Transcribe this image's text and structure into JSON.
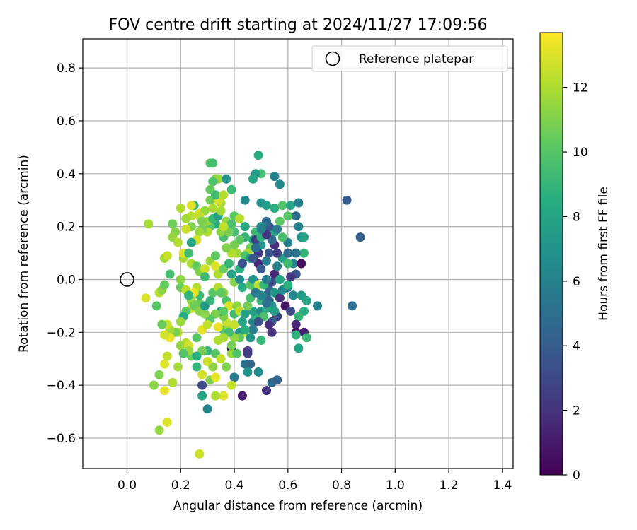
{
  "chart_data": {
    "type": "scatter",
    "title": "FOV centre drift starting at 2024/11/27 17:09:56",
    "xlabel": "Angular distance from reference (arcmin)",
    "ylabel": "Rotation from reference (arcmin)",
    "xlim": [
      -0.165,
      1.44
    ],
    "ylim": [
      -0.715,
      0.91
    ],
    "grid": true,
    "xticks": [
      0.0,
      0.2,
      0.4,
      0.6,
      0.8,
      1.0,
      1.2,
      1.4
    ],
    "xtick_labels": [
      "0.0",
      "0.2",
      "0.4",
      "0.6",
      "0.8",
      "1.0",
      "1.2",
      "1.4"
    ],
    "yticks": [
      0.8,
      0.6,
      0.4,
      0.2,
      0.0,
      -0.2,
      -0.4,
      -0.6
    ],
    "ytick_labels": [
      "0.8",
      "0.6",
      "0.4",
      "0.2",
      "0.0",
      "−0.2",
      "−0.4",
      "−0.6"
    ],
    "legend": {
      "location": "upper right",
      "entries": [
        "Reference platepar"
      ]
    },
    "reference_point": {
      "x": 0.0,
      "y": 0.0,
      "label": "Reference platepar"
    },
    "colorbar": {
      "label": "Hours from first FF file",
      "range": [
        0,
        13.7
      ],
      "ticks": [
        0,
        2,
        4,
        6,
        8,
        10,
        12
      ],
      "tick_labels": [
        "0",
        "2",
        "4",
        "6",
        "8",
        "10",
        "12"
      ],
      "colormap": "viridis"
    },
    "points": [
      [
        0.49,
        0.47,
        8.5
      ],
      [
        0.31,
        0.44,
        10
      ],
      [
        0.32,
        0.44,
        9.5
      ],
      [
        0.5,
        0.4,
        9.5
      ],
      [
        0.48,
        0.4,
        7.5
      ],
      [
        0.47,
        0.38,
        8
      ],
      [
        0.55,
        0.39,
        6
      ],
      [
        0.57,
        0.36,
        6.3
      ],
      [
        0.33,
        0.38,
        11
      ],
      [
        0.34,
        0.38,
        11.5
      ],
      [
        0.32,
        0.37,
        9.8
      ],
      [
        0.37,
        0.38,
        7
      ],
      [
        0.39,
        0.34,
        9.2
      ],
      [
        0.82,
        0.3,
        4
      ],
      [
        0.87,
        0.16,
        4.2
      ],
      [
        0.84,
        -0.1,
        5
      ],
      [
        0.71,
        -0.1,
        6
      ],
      [
        0.44,
        0.3,
        6.5
      ],
      [
        0.5,
        0.29,
        7
      ],
      [
        0.52,
        0.28,
        7.6
      ],
      [
        0.55,
        0.27,
        8.5
      ],
      [
        0.58,
        0.28,
        9.8
      ],
      [
        0.61,
        0.28,
        8
      ],
      [
        0.64,
        0.29,
        5.8
      ],
      [
        0.63,
        0.24,
        5
      ],
      [
        0.6,
        0.24,
        10
      ],
      [
        0.64,
        0.2,
        6
      ],
      [
        0.65,
        0.16,
        7
      ],
      [
        0.66,
        0.16,
        8
      ],
      [
        0.66,
        0.1,
        9
      ],
      [
        0.63,
        0.1,
        5.2
      ],
      [
        0.62,
        0.06,
        6
      ],
      [
        0.65,
        0.06,
        0.5
      ],
      [
        0.63,
        0.02,
        3.5
      ],
      [
        0.61,
        0.01,
        2.2
      ],
      [
        0.6,
        -0.03,
        5.5
      ],
      [
        0.62,
        -0.06,
        6.4
      ],
      [
        0.65,
        -0.06,
        7.5
      ],
      [
        0.67,
        -0.08,
        8
      ],
      [
        0.66,
        -0.12,
        8.5
      ],
      [
        0.64,
        -0.14,
        9
      ],
      [
        0.63,
        -0.17,
        1.5
      ],
      [
        0.63,
        -0.2,
        0.7
      ],
      [
        0.66,
        -0.2,
        1.2
      ],
      [
        0.67,
        -0.22,
        9.2
      ],
      [
        0.64,
        -0.26,
        8.1
      ],
      [
        0.63,
        -0.21,
        8.8
      ],
      [
        0.59,
        -0.1,
        0.8
      ],
      [
        0.61,
        -0.12,
        3
      ],
      [
        0.56,
        -0.14,
        2.8
      ],
      [
        0.54,
        -0.16,
        4
      ],
      [
        0.54,
        -0.2,
        2
      ],
      [
        0.53,
        -0.17,
        1.8
      ],
      [
        0.5,
        -0.23,
        9
      ],
      [
        0.45,
        -0.27,
        2.2
      ],
      [
        0.45,
        -0.28,
        2.6
      ],
      [
        0.44,
        -0.32,
        5
      ],
      [
        0.46,
        -0.32,
        4.5
      ],
      [
        0.45,
        -0.35,
        7
      ],
      [
        0.49,
        -0.35,
        6.6
      ],
      [
        0.52,
        -0.42,
        2
      ],
      [
        0.54,
        -0.39,
        4.6
      ],
      [
        0.56,
        -0.38,
        4.2
      ],
      [
        0.43,
        -0.44,
        1
      ],
      [
        0.4,
        -0.37,
        5.5
      ],
      [
        0.39,
        -0.4,
        12.5
      ],
      [
        0.36,
        -0.44,
        13
      ],
      [
        0.33,
        -0.44,
        12
      ],
      [
        0.31,
        -0.38,
        11
      ],
      [
        0.33,
        -0.37,
        13.2
      ],
      [
        0.28,
        -0.36,
        12.8
      ],
      [
        0.28,
        -0.4,
        3
      ],
      [
        0.28,
        -0.44,
        8
      ],
      [
        0.3,
        -0.49,
        6.2
      ],
      [
        0.27,
        -0.66,
        12.6
      ],
      [
        0.12,
        -0.57,
        11.5
      ],
      [
        0.15,
        -0.54,
        13
      ],
      [
        0.14,
        -0.42,
        13.3
      ],
      [
        0.17,
        -0.39,
        12
      ],
      [
        0.12,
        -0.36,
        11
      ],
      [
        0.1,
        -0.4,
        11.2
      ],
      [
        0.14,
        -0.32,
        13
      ],
      [
        0.15,
        -0.29,
        12.5
      ],
      [
        0.19,
        -0.33,
        11.8
      ],
      [
        0.24,
        -0.29,
        10.5
      ],
      [
        0.22,
        -0.24,
        12.2
      ],
      [
        0.2,
        -0.25,
        11.5
      ],
      [
        0.23,
        -0.25,
        12.8
      ],
      [
        0.26,
        -0.33,
        9
      ],
      [
        0.26,
        -0.22,
        10
      ],
      [
        0.28,
        -0.19,
        13.2
      ],
      [
        0.3,
        -0.27,
        9
      ],
      [
        0.33,
        -0.28,
        10
      ],
      [
        0.35,
        -0.3,
        12.5
      ],
      [
        0.37,
        -0.33,
        11
      ],
      [
        0.34,
        -0.23,
        12
      ],
      [
        0.39,
        -0.26,
        0.8
      ],
      [
        0.39,
        -0.28,
        11.5
      ],
      [
        0.36,
        -0.19,
        10
      ],
      [
        0.38,
        -0.18,
        11.8
      ],
      [
        0.4,
        -0.17,
        12.5
      ],
      [
        0.43,
        -0.16,
        8
      ],
      [
        0.44,
        -0.2,
        12.6
      ],
      [
        0.42,
        -0.2,
        7
      ],
      [
        0.47,
        -0.16,
        6
      ],
      [
        0.48,
        -0.14,
        8.8
      ],
      [
        0.47,
        -0.12,
        7.7
      ],
      [
        0.5,
        -0.12,
        6.5
      ],
      [
        0.5,
        -0.08,
        9
      ],
      [
        0.52,
        -0.06,
        5.5
      ],
      [
        0.53,
        -0.04,
        4.5
      ],
      [
        0.54,
        -0.01,
        3.2
      ],
      [
        0.55,
        0.02,
        1.5
      ],
      [
        0.56,
        0.05,
        6
      ],
      [
        0.58,
        0.08,
        7.8
      ],
      [
        0.6,
        0.1,
        4.8
      ],
      [
        0.6,
        0.14,
        5.8
      ],
      [
        0.58,
        0.16,
        9.6
      ],
      [
        0.55,
        0.18,
        8.2
      ],
      [
        0.53,
        0.2,
        3.8
      ],
      [
        0.52,
        0.22,
        5
      ],
      [
        0.5,
        0.2,
        6.7
      ],
      [
        0.48,
        0.18,
        9.2
      ],
      [
        0.47,
        0.15,
        8
      ],
      [
        0.46,
        0.12,
        10.6
      ],
      [
        0.45,
        0.1,
        12
      ],
      [
        0.44,
        0.09,
        9.9
      ],
      [
        0.46,
        0.08,
        7.3
      ],
      [
        0.49,
        0.06,
        1.5
      ],
      [
        0.5,
        0.04,
        3.8
      ],
      [
        0.52,
        0.07,
        5.8
      ],
      [
        0.53,
        0.1,
        3.6
      ],
      [
        0.5,
        0.13,
        7
      ],
      [
        0.48,
        0.15,
        2.7
      ],
      [
        0.44,
        0.16,
        9
      ],
      [
        0.42,
        0.15,
        10.2
      ],
      [
        0.4,
        0.13,
        10.8
      ],
      [
        0.41,
        0.1,
        11.6
      ],
      [
        0.39,
        0.1,
        12
      ],
      [
        0.37,
        0.12,
        11
      ],
      [
        0.36,
        0.16,
        9.6
      ],
      [
        0.35,
        0.18,
        11.2
      ],
      [
        0.33,
        0.21,
        8.5
      ],
      [
        0.31,
        0.2,
        10.1
      ],
      [
        0.3,
        0.18,
        12
      ],
      [
        0.28,
        0.19,
        10.8
      ],
      [
        0.27,
        0.18,
        11.6
      ],
      [
        0.26,
        0.15,
        12.8
      ],
      [
        0.24,
        0.14,
        8
      ],
      [
        0.24,
        0.2,
        11
      ],
      [
        0.24,
        0.24,
        12.3
      ],
      [
        0.25,
        0.28,
        9
      ],
      [
        0.24,
        0.28,
        13.1
      ],
      [
        0.27,
        0.25,
        12.9
      ],
      [
        0.3,
        0.22,
        11.4
      ],
      [
        0.32,
        0.23,
        9.2
      ],
      [
        0.34,
        0.24,
        7.6
      ],
      [
        0.35,
        0.26,
        11.8
      ],
      [
        0.35,
        0.29,
        12
      ],
      [
        0.37,
        0.22,
        11.2
      ],
      [
        0.39,
        0.21,
        9.7
      ],
      [
        0.4,
        0.24,
        10.1
      ],
      [
        0.42,
        0.23,
        12.2
      ],
      [
        0.44,
        0.2,
        8.3
      ],
      [
        0.4,
        0.18,
        9.5
      ],
      [
        0.38,
        0.18,
        10.8
      ],
      [
        0.36,
        0.2,
        12.4
      ],
      [
        0.17,
        0.21,
        10.6
      ],
      [
        0.18,
        0.18,
        11.1
      ],
      [
        0.17,
        0.16,
        11.5
      ],
      [
        0.19,
        0.14,
        12.2
      ],
      [
        0.21,
        0.08,
        11.8
      ],
      [
        0.21,
        0.1,
        13
      ],
      [
        0.23,
        0.1,
        9.4
      ],
      [
        0.24,
        0.06,
        12
      ],
      [
        0.26,
        0.05,
        10.3
      ],
      [
        0.27,
        0.03,
        11
      ],
      [
        0.29,
        0.04,
        12.7
      ],
      [
        0.29,
        0.01,
        9.3
      ],
      [
        0.31,
        0.07,
        11.5
      ],
      [
        0.33,
        0.09,
        10.2
      ],
      [
        0.33,
        0.05,
        13
      ],
      [
        0.34,
        0.02,
        12
      ],
      [
        0.36,
        0.04,
        10.6
      ],
      [
        0.38,
        0.06,
        9.1
      ],
      [
        0.39,
        0.02,
        7.8
      ],
      [
        0.4,
        -0.01,
        11.1
      ],
      [
        0.42,
        0.04,
        8.7
      ],
      [
        0.43,
        0.06,
        3.5
      ],
      [
        0.42,
        0.0,
        6.5
      ],
      [
        0.43,
        -0.03,
        8.4
      ],
      [
        0.46,
        -0.02,
        10
      ],
      [
        0.47,
        0.0,
        7
      ],
      [
        0.48,
        -0.04,
        9.8
      ],
      [
        0.49,
        -0.02,
        12.3
      ],
      [
        0.51,
        -0.02,
        9
      ],
      [
        0.52,
        0.0,
        5.7
      ],
      [
        0.53,
        -0.08,
        4.4
      ],
      [
        0.54,
        -0.1,
        6.8
      ],
      [
        0.55,
        -0.12,
        7.5
      ],
      [
        0.52,
        -0.11,
        8.2
      ],
      [
        0.51,
        -0.14,
        9.7
      ],
      [
        0.49,
        -0.16,
        3.4
      ],
      [
        0.47,
        -0.19,
        5.8
      ],
      [
        0.46,
        -0.22,
        7.1
      ],
      [
        0.44,
        -0.19,
        8.6
      ],
      [
        0.42,
        -0.22,
        10.3
      ],
      [
        0.4,
        -0.22,
        11.4
      ],
      [
        0.38,
        -0.2,
        9.5
      ],
      [
        0.37,
        -0.16,
        12.6
      ],
      [
        0.36,
        -0.14,
        10.9
      ],
      [
        0.35,
        -0.12,
        8.1
      ],
      [
        0.33,
        -0.13,
        11
      ],
      [
        0.31,
        -0.15,
        9.9
      ],
      [
        0.3,
        -0.17,
        12.4
      ],
      [
        0.29,
        -0.13,
        11.3
      ],
      [
        0.27,
        -0.09,
        10.4
      ],
      [
        0.27,
        -0.06,
        9.2
      ],
      [
        0.26,
        -0.03,
        12.1
      ],
      [
        0.25,
        -0.05,
        13.2
      ],
      [
        0.24,
        -0.08,
        11.4
      ],
      [
        0.24,
        -0.11,
        12.7
      ],
      [
        0.22,
        -0.12,
        10.2
      ],
      [
        0.21,
        -0.14,
        8.4
      ],
      [
        0.2,
        -0.16,
        11.6
      ],
      [
        0.19,
        -0.2,
        12.2
      ],
      [
        0.18,
        -0.2,
        10.8
      ],
      [
        0.16,
        -0.19,
        11.7
      ],
      [
        0.15,
        -0.17,
        12.6
      ],
      [
        0.16,
        -0.22,
        13.3
      ],
      [
        0.13,
        -0.17,
        10.5
      ],
      [
        0.14,
        -0.21,
        12.8
      ],
      [
        0.11,
        -0.1,
        10.1
      ],
      [
        0.12,
        -0.05,
        12.2
      ],
      [
        0.13,
        -0.04,
        11.3
      ],
      [
        0.14,
        -0.02,
        10.4
      ],
      [
        0.16,
        0.02,
        9.5
      ],
      [
        0.14,
        0.08,
        11.8
      ],
      [
        0.15,
        0.09,
        12.5
      ],
      [
        0.08,
        0.21,
        11.8
      ],
      [
        0.07,
        -0.07,
        12.9
      ],
      [
        0.2,
        0.0,
        11.3
      ],
      [
        0.2,
        -0.03,
        10.5
      ],
      [
        0.22,
        -0.04,
        12.4
      ],
      [
        0.23,
        -0.06,
        8.8
      ],
      [
        0.25,
        -0.1,
        10.6
      ],
      [
        0.27,
        -0.12,
        11.1
      ],
      [
        0.29,
        -0.1,
        7.4
      ],
      [
        0.31,
        -0.08,
        8.9
      ],
      [
        0.32,
        -0.05,
        10.1
      ],
      [
        0.34,
        -0.03,
        12.2
      ],
      [
        0.36,
        -0.05,
        11.4
      ],
      [
        0.37,
        -0.08,
        9.7
      ],
      [
        0.38,
        -0.1,
        12.9
      ],
      [
        0.36,
        -0.12,
        10.3
      ],
      [
        0.4,
        -0.13,
        9.4
      ],
      [
        0.41,
        -0.1,
        11.3
      ],
      [
        0.42,
        -0.12,
        12.4
      ],
      [
        0.44,
        -0.13,
        7.7
      ],
      [
        0.45,
        -0.1,
        10.7
      ],
      [
        0.46,
        -0.07,
        9.6
      ],
      [
        0.48,
        -0.05,
        5.3
      ],
      [
        0.5,
        -0.06,
        6.1
      ],
      [
        0.52,
        -0.09,
        5.1
      ],
      [
        0.55,
        -0.05,
        7.2
      ],
      [
        0.57,
        -0.07,
        1.9
      ],
      [
        0.58,
        -0.04,
        6.3
      ],
      [
        0.57,
        0.0,
        7.9
      ],
      [
        0.6,
        -0.02,
        8.7
      ],
      [
        0.6,
        0.06,
        9.3
      ],
      [
        0.56,
        0.1,
        2.5
      ],
      [
        0.55,
        0.13,
        1.8
      ],
      [
        0.54,
        0.15,
        4.6
      ],
      [
        0.56,
        0.19,
        5.6
      ],
      [
        0.57,
        0.22,
        10.2
      ],
      [
        0.49,
        0.1,
        2.4
      ],
      [
        0.47,
        0.08,
        3.7
      ],
      [
        0.48,
        0.12,
        4.9
      ],
      [
        0.5,
        0.16,
        8.8
      ],
      [
        0.52,
        0.17,
        2.1
      ],
      [
        0.5,
        0.19,
        5.9
      ],
      [
        0.31,
        0.3,
        10.7
      ],
      [
        0.32,
        0.27,
        11.9
      ],
      [
        0.34,
        0.3,
        12.8
      ],
      [
        0.31,
        0.34,
        10.4
      ],
      [
        0.33,
        0.32,
        9.3
      ],
      [
        0.36,
        0.32,
        12.1
      ],
      [
        0.29,
        0.26,
        11.5
      ],
      [
        0.27,
        0.24,
        12.4
      ],
      [
        0.28,
        0.22,
        10.9
      ],
      [
        0.22,
        0.23,
        11.7
      ],
      [
        0.22,
        0.19,
        12.6
      ],
      [
        0.2,
        0.27,
        12.1
      ],
      [
        0.35,
        -0.05,
        10.3
      ],
      [
        0.34,
        -0.18,
        13.3
      ],
      [
        0.36,
        -0.22,
        11.9
      ],
      [
        0.39,
        -0.25,
        10.7
      ],
      [
        0.41,
        -0.28,
        9.8
      ],
      [
        0.32,
        -0.33,
        11.3
      ],
      [
        0.3,
        -0.31,
        12.6
      ],
      [
        0.28,
        -0.27,
        10.8
      ],
      [
        0.26,
        -0.29,
        8.6
      ],
      [
        0.23,
        -0.27,
        11.6
      ],
      [
        0.21,
        -0.28,
        9.9
      ]
    ]
  }
}
